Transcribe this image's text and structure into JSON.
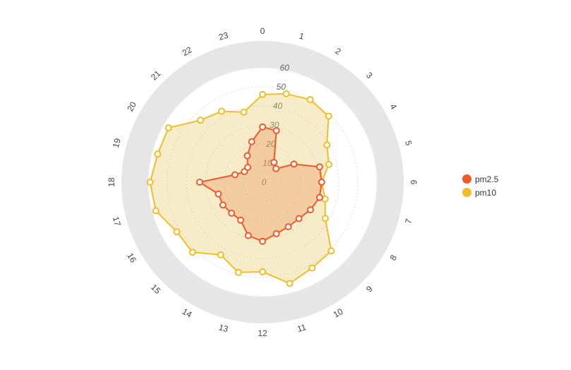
{
  "chart_data": {
    "type": "radar",
    "categories": [
      "0",
      "1",
      "2",
      "3",
      "4",
      "5",
      "6",
      "7",
      "8",
      "9",
      "10",
      "11",
      "12",
      "13",
      "14",
      "15",
      "16",
      "17",
      "18",
      "19",
      "20",
      "21",
      "22",
      "23"
    ],
    "radial_axis": {
      "min": 0,
      "max": 60,
      "ticks": [
        0,
        10,
        20,
        30,
        40,
        50,
        60
      ]
    },
    "series": [
      {
        "name": "pm2.5",
        "color": "#f05a28",
        "fill": "rgba(240,130,70,0.30)",
        "values": [
          29,
          28,
          12,
          10,
          19,
          31,
          31,
          31,
          29,
          27,
          27,
          28,
          31,
          29,
          23,
          23,
          24,
          24,
          33,
          15,
          11,
          11,
          16,
          22
        ]
      },
      {
        "name": "pm10",
        "color": "#f0be28",
        "fill": "rgba(230,200,100,0.35)",
        "values": [
          46,
          48,
          50,
          49,
          39,
          36,
          31,
          34,
          38,
          51,
          52,
          55,
          47,
          49,
          44,
          52,
          52,
          58,
          59,
          57,
          57,
          46,
          43,
          38
        ]
      }
    ],
    "legend": {
      "position": "right",
      "items": [
        "pm2.5",
        "pm10"
      ]
    }
  }
}
